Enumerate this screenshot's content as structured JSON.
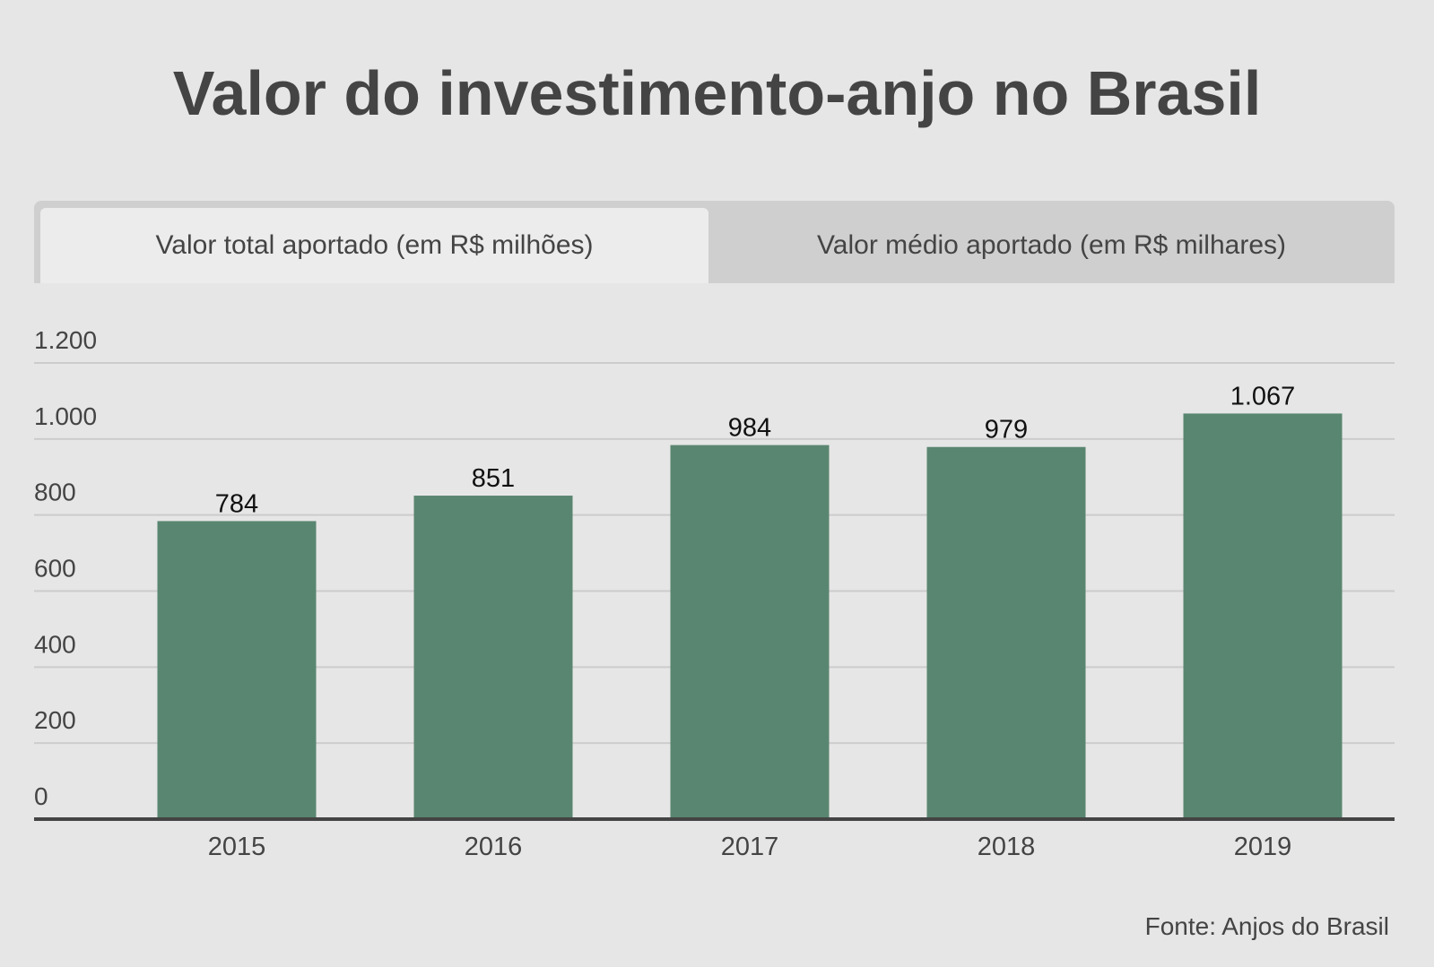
{
  "title": "Valor do investimento-anjo no Brasil",
  "tabs": [
    {
      "label": "Valor total aportado (em R$ milhões)",
      "active": true
    },
    {
      "label": "Valor médio aportado (em R$ milhares)",
      "active": false
    }
  ],
  "chart_data": {
    "type": "bar",
    "categories": [
      "2015",
      "2016",
      "2017",
      "2018",
      "2019"
    ],
    "values": [
      784,
      851,
      984,
      979,
      1067
    ],
    "value_labels": [
      "784",
      "851",
      "984",
      "979",
      "1.067"
    ],
    "y_ticks": [
      0,
      200,
      400,
      600,
      800,
      1000,
      1200
    ],
    "y_tick_labels": [
      "0",
      "200",
      "400",
      "600",
      "800",
      "1.000",
      "1.200"
    ],
    "ylim": [
      0,
      1200
    ],
    "grid": true,
    "legend": "none",
    "bar_color": "#598670"
  },
  "source": "Fonte: Anjos do Brasil",
  "colors": {
    "background": "#e6e6e6",
    "text": "#444444",
    "grid": "#cccccc",
    "axis": "#444444"
  }
}
